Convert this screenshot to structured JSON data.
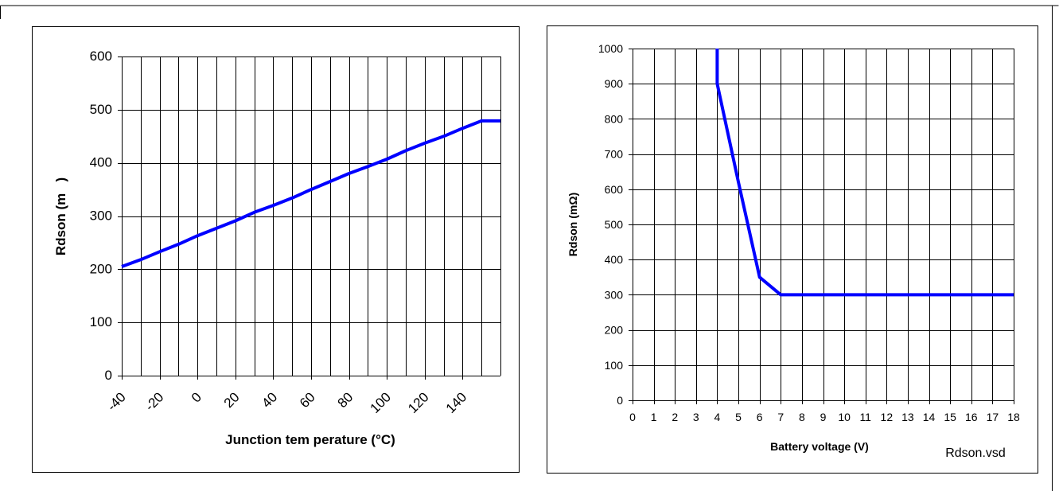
{
  "footer_label": "Rdson.vsd",
  "chart_data": [
    {
      "type": "line",
      "title": "",
      "xlabel": "Junction tem perature (°C)",
      "ylabel": "Rdson (m   )",
      "xlim": [
        -40,
        160
      ],
      "ylim": [
        0,
        600
      ],
      "x_ticks": [
        -40,
        -20,
        0,
        20,
        40,
        60,
        80,
        100,
        120,
        140
      ],
      "x_tick_labels": [
        "-40",
        "-20",
        "0",
        "20",
        "40",
        "60",
        "80",
        "100",
        "120",
        "140"
      ],
      "y_ticks": [
        0,
        100,
        200,
        300,
        400,
        500,
        600
      ],
      "y_tick_labels": [
        "0",
        "100",
        "200",
        "300",
        "400",
        "500",
        "600"
      ],
      "grid": true,
      "line_color": "#0000ff",
      "series": [
        {
          "x": [
            -40,
            -30,
            -20,
            -10,
            0,
            10,
            20,
            30,
            40,
            50,
            60,
            70,
            80,
            90,
            100,
            110,
            120,
            130,
            140,
            150,
            160
          ],
          "y": [
            205,
            218,
            233,
            247,
            263,
            277,
            291,
            307,
            320,
            334,
            350,
            365,
            380,
            393,
            407,
            423,
            437,
            450,
            465,
            479,
            479
          ]
        }
      ]
    },
    {
      "type": "line",
      "title": "",
      "xlabel": "Battery voltage (V)",
      "ylabel": "Rdson (mΩ)",
      "xlim": [
        0,
        18
      ],
      "ylim": [
        0,
        1000
      ],
      "x_ticks": [
        0,
        1,
        2,
        3,
        4,
        5,
        6,
        7,
        8,
        9,
        10,
        11,
        12,
        13,
        14,
        15,
        16,
        17,
        18
      ],
      "x_tick_labels": [
        "0",
        "1",
        "2",
        "3",
        "4",
        "5",
        "6",
        "7",
        "8",
        "9",
        "10",
        "11",
        "12",
        "13",
        "14",
        "15",
        "16",
        "17",
        "18"
      ],
      "y_ticks": [
        0,
        100,
        200,
        300,
        400,
        500,
        600,
        700,
        800,
        900,
        1000
      ],
      "y_tick_labels": [
        "0",
        "100",
        "200",
        "300",
        "400",
        "500",
        "600",
        "700",
        "800",
        "900",
        "1000"
      ],
      "grid": true,
      "line_color": "#0000ff",
      "series": [
        {
          "x": [
            4,
            4,
            5,
            6,
            7,
            18
          ],
          "y": [
            1000,
            900,
            620,
            350,
            300,
            300
          ]
        }
      ]
    }
  ]
}
